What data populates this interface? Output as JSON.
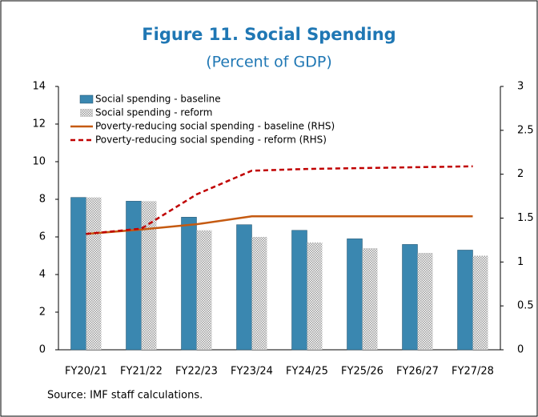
{
  "chart_data": {
    "type": "bar_line",
    "title": "Figure 11. Social Spending",
    "subtitle": "(Percent of GDP)",
    "source": "Source: IMF staff calculations.",
    "categories": [
      "FY20/21",
      "FY21/22",
      "FY22/23",
      "FY23/24",
      "FY24/25",
      "FY25/26",
      "FY26/27",
      "FY27/28"
    ],
    "series": [
      {
        "name": "Social spending - baseline",
        "type": "bar",
        "color": "#3a87b0",
        "values": [
          8.1,
          7.9,
          7.05,
          6.65,
          6.35,
          5.9,
          5.6,
          5.3
        ]
      },
      {
        "name": "Social spending - reform",
        "type": "bar",
        "color": "#9a9a9a",
        "hatch": true,
        "values": [
          8.1,
          7.9,
          6.35,
          6.0,
          5.7,
          5.4,
          5.15,
          5.0
        ]
      },
      {
        "name": "Poverty-reducing social spending - baseline (RHS)",
        "type": "line",
        "axis": "y2",
        "color": "#c55a11",
        "values": [
          1.32,
          1.37,
          1.43,
          1.52,
          1.52,
          1.52,
          1.52,
          1.52
        ]
      },
      {
        "name": "Poverty-reducing social spending - reform (RHS)",
        "type": "line",
        "axis": "y2",
        "color": "#c00000",
        "dashed": true,
        "values": [
          1.32,
          1.38,
          1.77,
          2.04,
          2.06,
          2.07,
          2.08,
          2.09
        ]
      }
    ],
    "ylim": [
      0,
      14
    ],
    "yticks": [
      0,
      2,
      4,
      6,
      8,
      10,
      12,
      14
    ],
    "y2lim": [
      0,
      3
    ],
    "y2ticks": [
      0,
      0.5,
      1,
      1.5,
      2,
      2.5,
      3
    ],
    "legend": "upper left",
    "grid": false
  }
}
